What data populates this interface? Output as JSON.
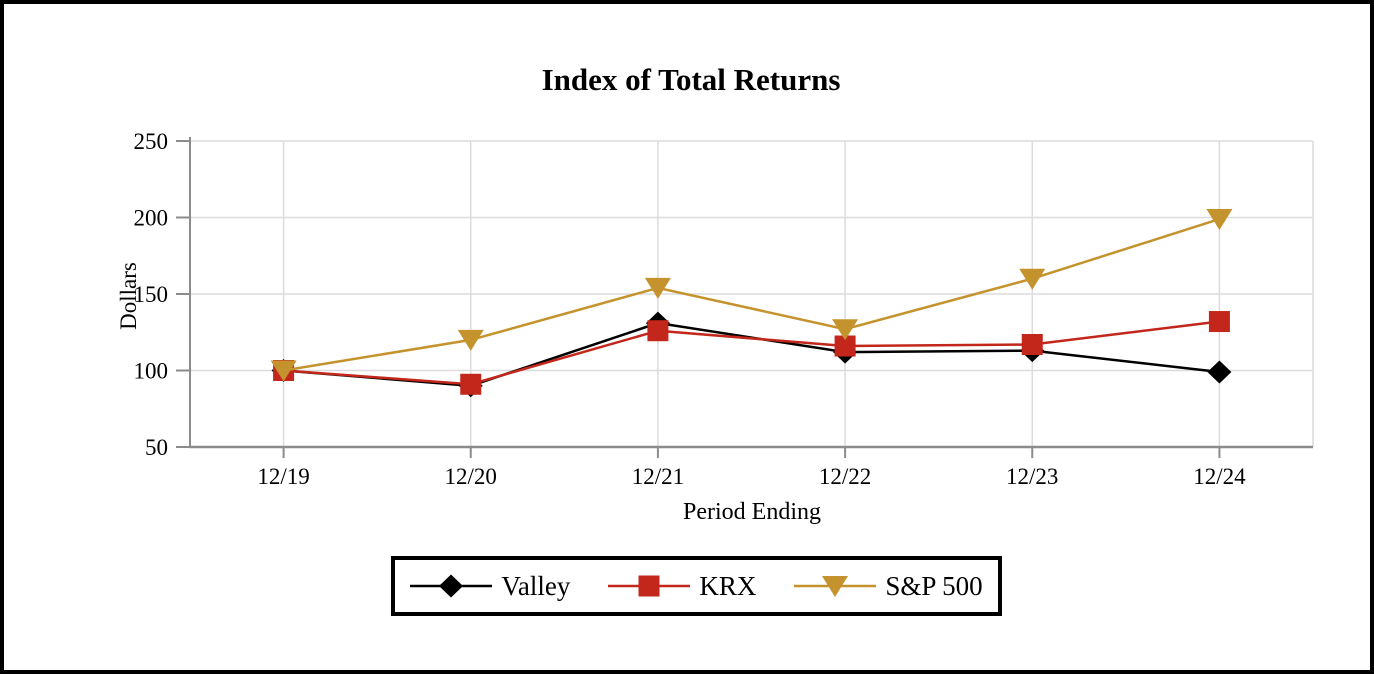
{
  "title": "Index of Total Returns",
  "chart_data": {
    "type": "line",
    "title": "Index of Total Returns",
    "xlabel": "Period Ending",
    "ylabel": "Dollars",
    "categories": [
      "12/19",
      "12/20",
      "12/21",
      "12/22",
      "12/23",
      "12/24"
    ],
    "y_ticks": [
      250,
      200,
      150,
      100,
      50
    ],
    "ylim": [
      50,
      250
    ],
    "grid": true,
    "legend_position": "bottom",
    "series": [
      {
        "name": "Valley",
        "marker": "diamond",
        "color": "#000000",
        "values": [
          100,
          90,
          131,
          112,
          113,
          99
        ]
      },
      {
        "name": "KRX",
        "marker": "square",
        "color": "#c3271b",
        "values": [
          100,
          91,
          126,
          116,
          117,
          132
        ]
      },
      {
        "name": "S&P 500",
        "marker": "triangle-down",
        "color": "#c5932d",
        "values": [
          100,
          120,
          154,
          127,
          160,
          199
        ]
      }
    ],
    "colors": {
      "axis_line": "#8c8c8c",
      "gridline": "#dcdcdc",
      "text": "#000000"
    }
  }
}
